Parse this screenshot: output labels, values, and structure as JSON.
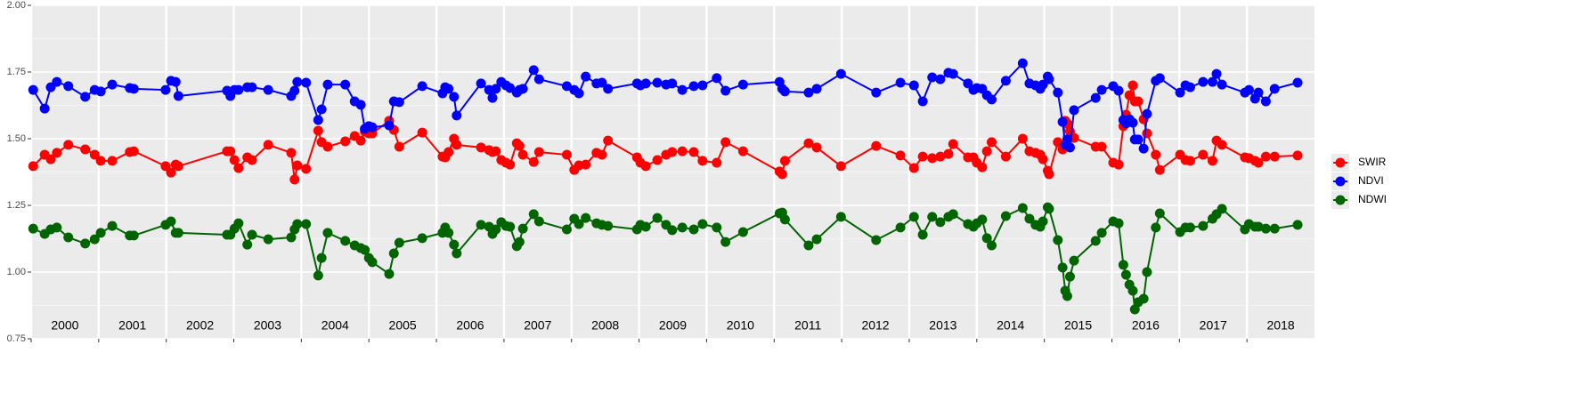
{
  "chart_data": {
    "type": "line",
    "x": [
      2000.03,
      2000.2,
      2000.29,
      2000.38,
      2000.55,
      2000.8,
      2000.94,
      2001.03,
      2001.2,
      2001.46,
      2001.52,
      2001.99,
      2002.07,
      2002.14,
      2002.18,
      2002.9,
      2002.95,
      2003.01,
      2003.07,
      2003.2,
      2003.27,
      2003.51,
      2003.85,
      2003.9,
      2003.94,
      2004.07,
      2004.25,
      2004.3,
      2004.39,
      2004.65,
      2004.79,
      2004.88,
      2004.94,
      2005.0,
      2005.05,
      2005.3,
      2005.37,
      2005.45,
      2005.79,
      2006.09,
      2006.13,
      2006.18,
      2006.26,
      2006.3,
      2006.66,
      2006.78,
      2006.83,
      2006.88,
      2006.96,
      2007.03,
      2007.09,
      2007.19,
      2007.23,
      2007.28,
      2007.44,
      2007.52,
      2007.93,
      2008.04,
      2008.11,
      2008.21,
      2008.37,
      2008.45,
      2008.54,
      2008.97,
      2009.02,
      2009.1,
      2009.27,
      2009.4,
      2009.49,
      2009.64,
      2009.81,
      2009.94,
      2010.15,
      2010.28,
      2010.54,
      2011.08,
      2011.12,
      2011.16,
      2011.51,
      2011.63,
      2011.99,
      2012.51,
      2012.87,
      2013.07,
      2013.2,
      2013.34,
      2013.46,
      2013.58,
      2013.65,
      2013.87,
      2013.95,
      2014.0,
      2014.08,
      2014.15,
      2014.22,
      2014.43,
      2014.68,
      2014.78,
      2014.87,
      2014.94,
      2014.98,
      2015.05,
      2015.07,
      2015.2,
      2015.27,
      2015.31,
      2015.34,
      2015.38,
      2015.44,
      2015.76,
      2015.85,
      2016.02,
      2016.1,
      2016.17,
      2016.21,
      2016.26,
      2016.31,
      2016.34,
      2016.39,
      2016.47,
      2016.52,
      2016.65,
      2016.71,
      2017.01,
      2017.09,
      2017.16,
      2017.35,
      2017.49,
      2017.55,
      2017.63,
      2017.97,
      2018.03,
      2018.12,
      2018.17,
      2018.28,
      2018.41,
      2018.75
    ],
    "series": [
      {
        "name": "SWIR",
        "color": "#ff0000",
        "values": [
          1.397,
          1.44,
          1.423,
          1.447,
          1.477,
          1.46,
          1.44,
          1.417,
          1.417,
          1.45,
          1.453,
          1.397,
          1.373,
          1.403,
          1.397,
          1.453,
          1.453,
          1.42,
          1.39,
          1.43,
          1.42,
          1.477,
          1.447,
          1.347,
          1.4,
          1.387,
          1.53,
          1.487,
          1.47,
          1.49,
          1.51,
          1.493,
          1.527,
          1.52,
          1.52,
          1.567,
          1.533,
          1.47,
          1.523,
          1.433,
          1.43,
          1.45,
          1.5,
          1.477,
          1.467,
          1.457,
          1.45,
          1.453,
          1.42,
          1.41,
          1.403,
          1.483,
          1.473,
          1.44,
          1.413,
          1.45,
          1.44,
          1.383,
          1.4,
          1.403,
          1.447,
          1.44,
          1.493,
          1.43,
          1.41,
          1.397,
          1.42,
          1.44,
          1.45,
          1.453,
          1.45,
          1.417,
          1.41,
          1.487,
          1.453,
          1.377,
          1.367,
          1.417,
          1.483,
          1.467,
          1.397,
          1.473,
          1.437,
          1.39,
          1.433,
          1.427,
          1.433,
          1.443,
          1.48,
          1.43,
          1.43,
          1.41,
          1.393,
          1.453,
          1.487,
          1.433,
          1.5,
          1.453,
          1.447,
          1.44,
          1.423,
          1.38,
          1.367,
          1.487,
          1.46,
          1.567,
          1.557,
          1.527,
          1.503,
          1.47,
          1.47,
          1.41,
          1.403,
          1.547,
          1.59,
          1.663,
          1.7,
          1.64,
          1.64,
          1.573,
          1.52,
          1.44,
          1.383,
          1.44,
          1.42,
          1.417,
          1.44,
          1.417,
          1.493,
          1.477,
          1.43,
          1.427,
          1.417,
          1.41,
          1.433,
          1.433,
          1.437
        ]
      },
      {
        "name": "NDVI",
        "color": "#0000ff",
        "values": [
          1.683,
          1.613,
          1.693,
          1.713,
          1.697,
          1.657,
          1.683,
          1.677,
          1.703,
          1.69,
          1.687,
          1.683,
          1.717,
          1.713,
          1.66,
          1.68,
          1.66,
          1.683,
          1.683,
          1.693,
          1.693,
          1.683,
          1.66,
          1.68,
          1.713,
          1.71,
          1.57,
          1.61,
          1.703,
          1.703,
          1.64,
          1.627,
          1.537,
          1.547,
          1.543,
          1.55,
          1.64,
          1.637,
          1.697,
          1.67,
          1.693,
          1.687,
          1.657,
          1.587,
          1.707,
          1.683,
          1.653,
          1.687,
          1.713,
          1.7,
          1.69,
          1.673,
          1.683,
          1.687,
          1.757,
          1.723,
          1.697,
          1.683,
          1.67,
          1.733,
          1.707,
          1.71,
          1.687,
          1.707,
          1.7,
          1.707,
          1.71,
          1.703,
          1.707,
          1.683,
          1.697,
          1.7,
          1.727,
          1.68,
          1.703,
          1.713,
          1.687,
          1.677,
          1.673,
          1.687,
          1.743,
          1.673,
          1.71,
          1.7,
          1.64,
          1.73,
          1.723,
          1.747,
          1.743,
          1.707,
          1.683,
          1.69,
          1.687,
          1.663,
          1.647,
          1.717,
          1.783,
          1.707,
          1.7,
          1.687,
          1.703,
          1.733,
          1.723,
          1.673,
          1.563,
          1.477,
          1.497,
          1.467,
          1.607,
          1.653,
          1.683,
          1.697,
          1.68,
          1.57,
          1.557,
          1.573,
          1.56,
          1.497,
          1.497,
          1.463,
          1.593,
          1.717,
          1.727,
          1.673,
          1.7,
          1.693,
          1.713,
          1.713,
          1.743,
          1.703,
          1.673,
          1.683,
          1.65,
          1.673,
          1.64,
          1.687,
          1.71
        ]
      },
      {
        "name": "NDWI",
        "color": "#006400",
        "values": [
          1.163,
          1.143,
          1.16,
          1.167,
          1.13,
          1.107,
          1.123,
          1.147,
          1.173,
          1.137,
          1.137,
          1.177,
          1.19,
          1.147,
          1.147,
          1.14,
          1.14,
          1.163,
          1.183,
          1.103,
          1.14,
          1.123,
          1.13,
          1.16,
          1.18,
          1.18,
          0.987,
          1.053,
          1.147,
          1.117,
          1.1,
          1.09,
          1.083,
          1.053,
          1.037,
          0.993,
          1.07,
          1.11,
          1.127,
          1.147,
          1.167,
          1.147,
          1.103,
          1.07,
          1.177,
          1.17,
          1.143,
          1.16,
          1.187,
          1.173,
          1.17,
          1.097,
          1.113,
          1.163,
          1.217,
          1.19,
          1.16,
          1.2,
          1.18,
          1.203,
          1.183,
          1.177,
          1.173,
          1.16,
          1.177,
          1.17,
          1.203,
          1.177,
          1.157,
          1.167,
          1.16,
          1.18,
          1.167,
          1.113,
          1.15,
          1.22,
          1.223,
          1.197,
          1.1,
          1.123,
          1.207,
          1.12,
          1.167,
          1.207,
          1.14,
          1.207,
          1.187,
          1.207,
          1.217,
          1.18,
          1.17,
          1.183,
          1.197,
          1.127,
          1.1,
          1.21,
          1.24,
          1.2,
          1.177,
          1.17,
          1.19,
          1.243,
          1.237,
          1.12,
          1.017,
          0.93,
          0.91,
          0.983,
          1.043,
          1.117,
          1.147,
          1.19,
          1.183,
          1.027,
          0.99,
          0.953,
          0.93,
          0.86,
          0.887,
          0.9,
          1.0,
          1.167,
          1.22,
          1.15,
          1.167,
          1.167,
          1.173,
          1.2,
          1.217,
          1.237,
          1.16,
          1.18,
          1.17,
          1.17,
          1.163,
          1.163,
          1.177
        ]
      }
    ],
    "xlim": [
      2000,
      2019
    ],
    "xticks": [
      2000,
      2001,
      2002,
      2003,
      2004,
      2005,
      2006,
      2007,
      2008,
      2009,
      2010,
      2011,
      2012,
      2013,
      2014,
      2015,
      2016,
      2017,
      2018
    ],
    "year_labels": [
      {
        "value": 2000.5,
        "label": "2000"
      },
      {
        "value": 2001.5,
        "label": "2001"
      },
      {
        "value": 2002.5,
        "label": "2002"
      },
      {
        "value": 2003.5,
        "label": "2003"
      },
      {
        "value": 2004.5,
        "label": "2004"
      },
      {
        "value": 2005.5,
        "label": "2005"
      },
      {
        "value": 2006.5,
        "label": "2006"
      },
      {
        "value": 2007.5,
        "label": "2007"
      },
      {
        "value": 2008.5,
        "label": "2008"
      },
      {
        "value": 2009.5,
        "label": "2009"
      },
      {
        "value": 2010.5,
        "label": "2010"
      },
      {
        "value": 2011.5,
        "label": "2011"
      },
      {
        "value": 2012.5,
        "label": "2012"
      },
      {
        "value": 2013.5,
        "label": "2013"
      },
      {
        "value": 2014.5,
        "label": "2014"
      },
      {
        "value": 2015.5,
        "label": "2015"
      },
      {
        "value": 2016.5,
        "label": "2016"
      },
      {
        "value": 2017.5,
        "label": "2017"
      },
      {
        "value": 2018.5,
        "label": "2018"
      }
    ],
    "ylim": [
      0.75,
      2.0
    ],
    "yticks": [
      0.75,
      {
        "value": 1.0,
        "label": "1.00"
      },
      1.25,
      {
        "value": 1.5,
        "label": "1.50"
      },
      1.75,
      {
        "value": 2.0,
        "label": "2.00"
      }
    ],
    "y_minor_gridlines": [
      0.875,
      1.125,
      1.375,
      1.625,
      1.875
    ],
    "grid": true,
    "legend": "right"
  }
}
